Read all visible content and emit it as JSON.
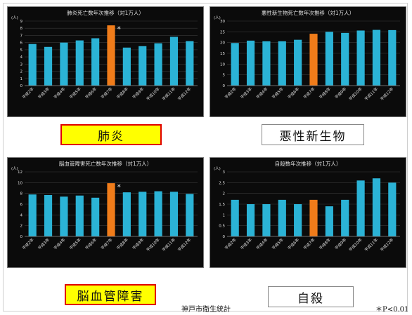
{
  "labels": [
    "肺炎",
    "悪性新生物",
    "脳血管障害",
    "自殺"
  ],
  "source": "神戸市衛生統計",
  "significance_note": "＊P<0.01",
  "colors": {
    "bar": "#2bb3d6",
    "highlight": "#f07c1a",
    "panel_bg": "#0b0b0b",
    "grid": "#3a3a3a",
    "text": "#e0e0e0"
  },
  "chart_data": [
    {
      "type": "bar",
      "title": "肺炎死亡数年次推移（対1万人）",
      "ylabel": "(人)",
      "ylim": [
        0,
        9
      ],
      "yticks": [
        0,
        1,
        2,
        3,
        4,
        5,
        6,
        7,
        8,
        9
      ],
      "categories": [
        "平成2年",
        "平成3年",
        "平成4年",
        "平成5年",
        "平成6年",
        "平成7年",
        "平成8年",
        "平成9年",
        "平成10年",
        "平成11年",
        "平成12年"
      ],
      "values": [
        5.8,
        5.4,
        6.0,
        6.3,
        6.6,
        8.4,
        5.3,
        5.5,
        5.9,
        6.8,
        6.2
      ],
      "highlight_index": 5,
      "annotation": "＊"
    },
    {
      "type": "bar",
      "title": "悪性新生物死亡数年次推移（対1万人）",
      "ylabel": "(人)",
      "ylim": [
        0,
        30
      ],
      "yticks": [
        0,
        5,
        10,
        15,
        20,
        25,
        30
      ],
      "categories": [
        "平成2年",
        "平成3年",
        "平成4年",
        "平成5年",
        "平成6年",
        "平成7年",
        "平成8年",
        "平成9年",
        "平成10年",
        "平成11年",
        "平成12年"
      ],
      "values": [
        19.8,
        20.9,
        20.6,
        20.6,
        21.3,
        24.1,
        25.0,
        24.5,
        25.6,
        25.9,
        25.8
      ],
      "highlight_index": 5,
      "annotation": ""
    },
    {
      "type": "bar",
      "title": "脳血管障害死亡数年次推移（対1万人）",
      "ylabel": "(人)",
      "ylim": [
        0,
        12
      ],
      "yticks": [
        0,
        2,
        4,
        6,
        8,
        10,
        12
      ],
      "categories": [
        "平成2年",
        "平成3年",
        "平成4年",
        "平成5年",
        "平成6年",
        "平成7年",
        "平成8年",
        "平成9年",
        "平成10年",
        "平成11年",
        "平成12年"
      ],
      "values": [
        7.8,
        7.7,
        7.4,
        7.6,
        7.2,
        9.9,
        8.2,
        8.3,
        8.4,
        8.3,
        7.9
      ],
      "highlight_index": 5,
      "annotation": "＊"
    },
    {
      "type": "bar",
      "title": "自殺数年次推移（対1万人）",
      "ylabel": "(人)",
      "ylim": [
        0,
        3
      ],
      "yticks": [
        0,
        0.5,
        1,
        1.5,
        2,
        2.5,
        3
      ],
      "categories": [
        "平成2年",
        "平成3年",
        "平成4年",
        "平成5年",
        "平成6年",
        "平成7年",
        "平成8年",
        "平成9年",
        "平成10年",
        "平成11年",
        "平成12年"
      ],
      "values": [
        1.7,
        1.5,
        1.5,
        1.7,
        1.5,
        1.7,
        1.4,
        1.7,
        2.6,
        2.7,
        2.5
      ],
      "highlight_index": 5,
      "annotation": ""
    }
  ]
}
